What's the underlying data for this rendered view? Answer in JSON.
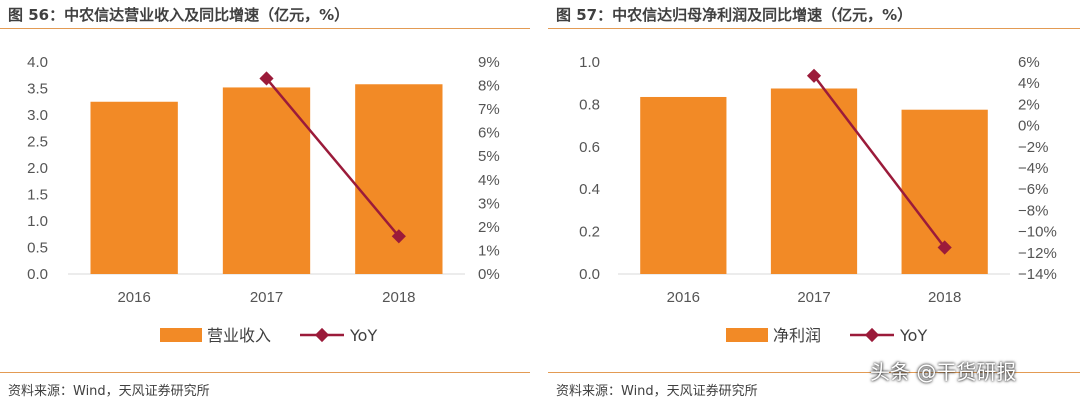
{
  "charts": [
    {
      "title": "图 56：中农信达营业收入及同比增速（亿元，%）",
      "source": "资料来源：Wind，天风证券研究所",
      "chart_data": {
        "type": "bar",
        "categories": [
          "2016",
          "2017",
          "2018"
        ],
        "series": [
          {
            "name": "营业收入",
            "type": "bar",
            "axis": "left",
            "values": [
              3.25,
              3.52,
              3.58
            ],
            "color": "#f28a26"
          },
          {
            "name": "YoY",
            "type": "line",
            "axis": "right",
            "values": [
              null,
              8.3,
              1.6
            ],
            "color": "#9b1b3a"
          }
        ],
        "yticks_left": [
          "0.0",
          "0.5",
          "1.0",
          "1.5",
          "2.0",
          "2.5",
          "3.0",
          "3.5",
          "4.0"
        ],
        "ylim_left": [
          0,
          4
        ],
        "yticks_right": [
          "0%",
          "1%",
          "2%",
          "3%",
          "4%",
          "5%",
          "6%",
          "7%",
          "8%",
          "9%"
        ],
        "ylim_right": [
          0,
          9
        ],
        "legend_position": "bottom"
      }
    },
    {
      "title": "图 57：中农信达归母净利润及同比增速（亿元，%）",
      "source": "资料来源：Wind，天风证券研究所",
      "chart_data": {
        "type": "bar",
        "categories": [
          "2016",
          "2017",
          "2018"
        ],
        "series": [
          {
            "name": "净利润",
            "type": "bar",
            "axis": "left",
            "values": [
              0.835,
              0.875,
              0.775
            ],
            "color": "#f28a26"
          },
          {
            "name": "YoY",
            "type": "line",
            "axis": "right",
            "values": [
              null,
              4.7,
              -11.5
            ],
            "color": "#9b1b3a"
          }
        ],
        "yticks_left": [
          "0.0",
          "0.2",
          "0.4",
          "0.6",
          "0.8",
          "1.0"
        ],
        "ylim_left": [
          0,
          1
        ],
        "yticks_right": [
          "6%",
          "4%",
          "2%",
          "0%",
          "−2%",
          "−4%",
          "−6%",
          "−8%",
          "−10%",
          "−12%",
          "−14%"
        ],
        "ylim_right": [
          -14,
          6
        ],
        "legend_position": "bottom"
      }
    }
  ],
  "watermark": "头条 @干货研报"
}
